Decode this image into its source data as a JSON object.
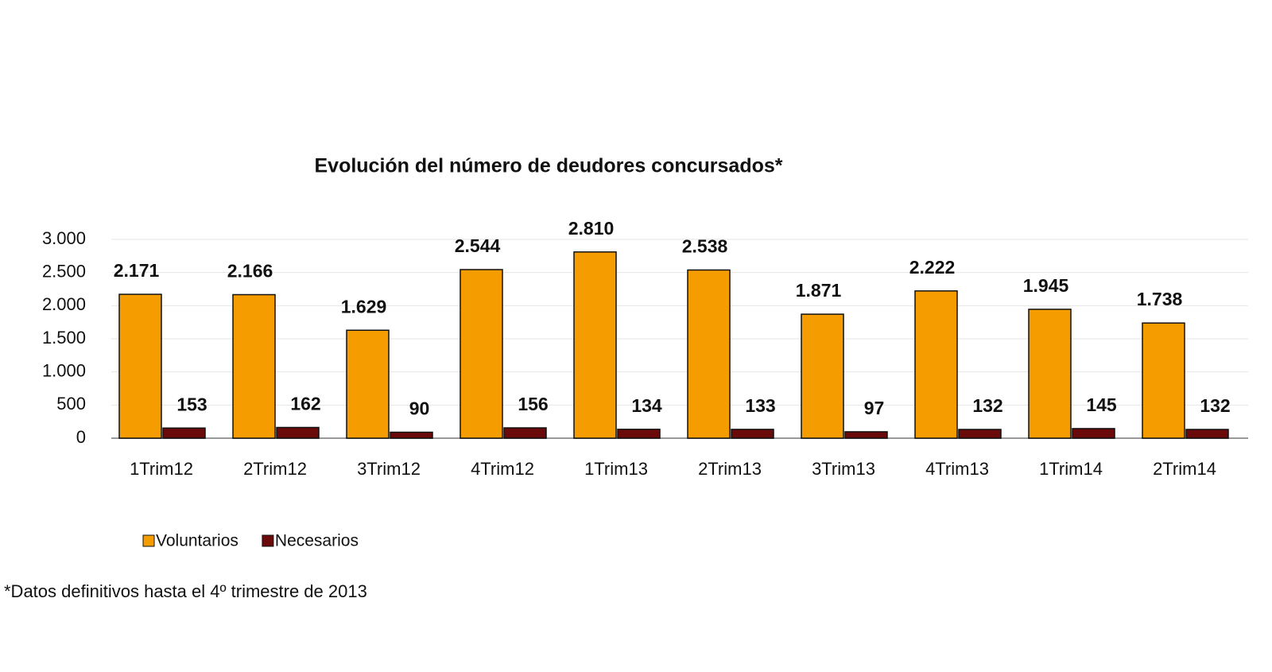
{
  "chart_data": {
    "type": "bar",
    "title": "Evolución del número de  deudores concursados*",
    "categories": [
      "1Trim12",
      "2Trim12",
      "3Trim12",
      "4Trim12",
      "1Trim13",
      "2Trim13",
      "3Trim13",
      "4Trim13",
      "1Trim14",
      "2Trim14"
    ],
    "series": [
      {
        "name": "Voluntarios",
        "color": "#f59c00",
        "values": [
          2171,
          2166,
          1629,
          2544,
          2810,
          2538,
          1871,
          2222,
          1945,
          1738
        ],
        "value_labels": [
          "2.171",
          "2.166",
          "1.629",
          "2.544",
          "2.810",
          "2.538",
          "1.871",
          "2.222",
          "1.945",
          "1.738"
        ]
      },
      {
        "name": "Necesarios",
        "color": "#6b0a0a",
        "values": [
          153,
          162,
          90,
          156,
          134,
          133,
          97,
          132,
          145,
          132
        ]
      }
    ],
    "ylim": [
      0,
      3000
    ],
    "yticks": [
      0,
      500,
      {
        "value": 1000,
        "label": "1.000"
      },
      {
        "value": 1500,
        "label": "1.500"
      },
      {
        "value": 2000,
        "label": "2.000"
      },
      {
        "value": 2500,
        "label": "2.500"
      },
      {
        "value": 3000,
        "label": "3.000"
      }
    ],
    "grid": true,
    "footnote": "*Datos definitivos hasta el 4º trimestre de 2013"
  }
}
